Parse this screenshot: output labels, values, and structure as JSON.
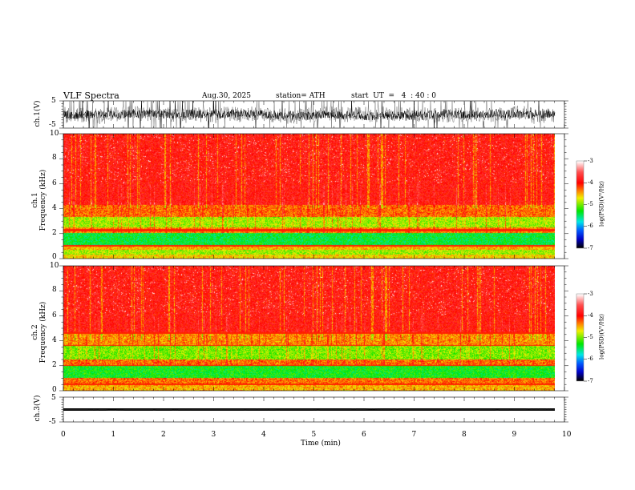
{
  "header": {
    "title": "VLF  Spectra",
    "date": "Aug.30, 2025",
    "station": "station= ATH",
    "start": "start  UT  =   4  : 40 : 0"
  },
  "panels": {
    "ch1_wave_label": "ch.1(V)",
    "ch1_spec_label": "ch.1\nFrequency (kHz)",
    "ch1_spec_label_a": "ch.1",
    "ch1_spec_label_b": "Frequency (kHz)",
    "ch2_spec_label_a": "ch.2",
    "ch2_spec_label_b": "Frequency (kHz)",
    "ch3_wave_label": "ch.3(V)",
    "wave_ticks": [
      "5",
      "-5"
    ],
    "freq_ticks": [
      "0",
      "2",
      "4",
      "6",
      "8",
      "10"
    ],
    "colorbar_label": "log(PSD)(V²/Hz)",
    "colorbar_ticks": [
      "-3",
      "-4",
      "-5",
      "-6",
      "-7"
    ]
  },
  "chart_data": {
    "type": "heatmap",
    "title": "VLF  Spectra",
    "xlabel": "Time  (min)",
    "x_ticks": [
      "0",
      "1",
      "2",
      "3",
      "4",
      "5",
      "6",
      "7",
      "8",
      "9",
      "10"
    ],
    "xlim": [
      0,
      10
    ],
    "data_end_min": 9.8,
    "series": [
      {
        "name": "ch.1(V)",
        "type": "line",
        "ylim": [
          -5,
          5
        ],
        "amplitude_approx": 4
      },
      {
        "name": "ch.1",
        "type": "heatmap",
        "ylabel": "Frequency (kHz)",
        "ylim": [
          0,
          10
        ],
        "zlim": [
          -7,
          -3
        ],
        "zlabel": "log(PSD)(V²/Hz)",
        "bands_kHz": [
          {
            "range": [
              0,
              2
            ],
            "level_approx": -5.2
          },
          {
            "range": [
              2,
              4
            ],
            "level_approx": -4.5
          },
          {
            "range": [
              4,
              10
            ],
            "level_approx": -3.9
          }
        ]
      },
      {
        "name": "ch.2",
        "type": "heatmap",
        "ylabel": "Frequency (kHz)",
        "ylim": [
          0,
          10
        ],
        "zlim": [
          -7,
          -3
        ],
        "zlabel": "log(PSD)(V²/Hz)",
        "bands_kHz": [
          {
            "range": [
              0,
              2
            ],
            "level_approx": -5.0
          },
          {
            "range": [
              2,
              4.5
            ],
            "level_approx": -4.6
          },
          {
            "range": [
              4.5,
              10
            ],
            "level_approx": -3.9
          }
        ]
      },
      {
        "name": "ch.3(V)",
        "type": "line",
        "ylim": [
          -5,
          5
        ],
        "amplitude_approx": 0.3
      }
    ]
  }
}
